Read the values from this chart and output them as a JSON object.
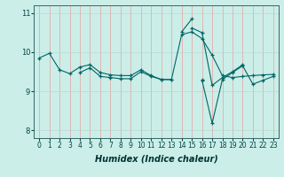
{
  "title": "",
  "xlabel": "Humidex (Indice chaleur)",
  "bg_color": "#cceee8",
  "line_color": "#006666",
  "grid_color_v": "#e8a0a0",
  "grid_color_h": "#b8d8d4",
  "xlim": [
    -0.5,
    23.5
  ],
  "ylim": [
    7.8,
    11.2
  ],
  "yticks": [
    8,
    9,
    10,
    11
  ],
  "xticks": [
    0,
    1,
    2,
    3,
    4,
    5,
    6,
    7,
    8,
    9,
    10,
    11,
    12,
    13,
    14,
    15,
    16,
    17,
    18,
    19,
    20,
    21,
    22,
    23
  ],
  "series": [
    [
      9.85,
      9.97,
      9.55,
      9.45,
      9.62,
      9.68,
      9.48,
      9.42,
      9.4,
      9.4,
      9.55,
      9.4,
      9.3,
      9.3,
      10.45,
      10.52,
      10.35,
      9.92,
      9.4,
      9.35,
      9.38,
      9.4,
      9.42,
      9.43
    ],
    [
      null,
      null,
      null,
      null,
      9.48,
      9.6,
      9.38,
      9.35,
      9.32,
      9.32,
      9.5,
      9.38,
      9.3,
      9.3,
      null,
      null,
      9.3,
      null,
      null,
      null,
      null,
      null,
      null,
      null
    ],
    [
      null,
      null,
      null,
      null,
      null,
      null,
      null,
      null,
      null,
      null,
      null,
      null,
      null,
      null,
      10.52,
      10.85,
      null,
      null,
      null,
      null,
      null,
      null,
      null,
      null
    ],
    [
      null,
      null,
      null,
      null,
      null,
      null,
      null,
      null,
      null,
      null,
      null,
      null,
      null,
      null,
      null,
      10.62,
      10.5,
      9.15,
      9.35,
      9.5,
      9.68,
      null,
      null,
      null
    ],
    [
      null,
      null,
      null,
      null,
      null,
      null,
      null,
      null,
      null,
      null,
      null,
      null,
      null,
      null,
      null,
      null,
      9.28,
      8.18,
      9.3,
      9.48,
      9.65,
      9.18,
      9.28,
      9.38
    ]
  ],
  "marker_series": [
    [
      0,
      1,
      2,
      3,
      4,
      5,
      6,
      7,
      8,
      9,
      10,
      11,
      12,
      13,
      14,
      15,
      16,
      17,
      18,
      19,
      20,
      21,
      22,
      23
    ],
    [
      4,
      5,
      6,
      7,
      8,
      9,
      10,
      11,
      12,
      13,
      16
    ],
    [
      14,
      15
    ],
    [
      15,
      16,
      17,
      18,
      19,
      20
    ],
    [
      16,
      17,
      18,
      19,
      20,
      21,
      22,
      23
    ]
  ]
}
